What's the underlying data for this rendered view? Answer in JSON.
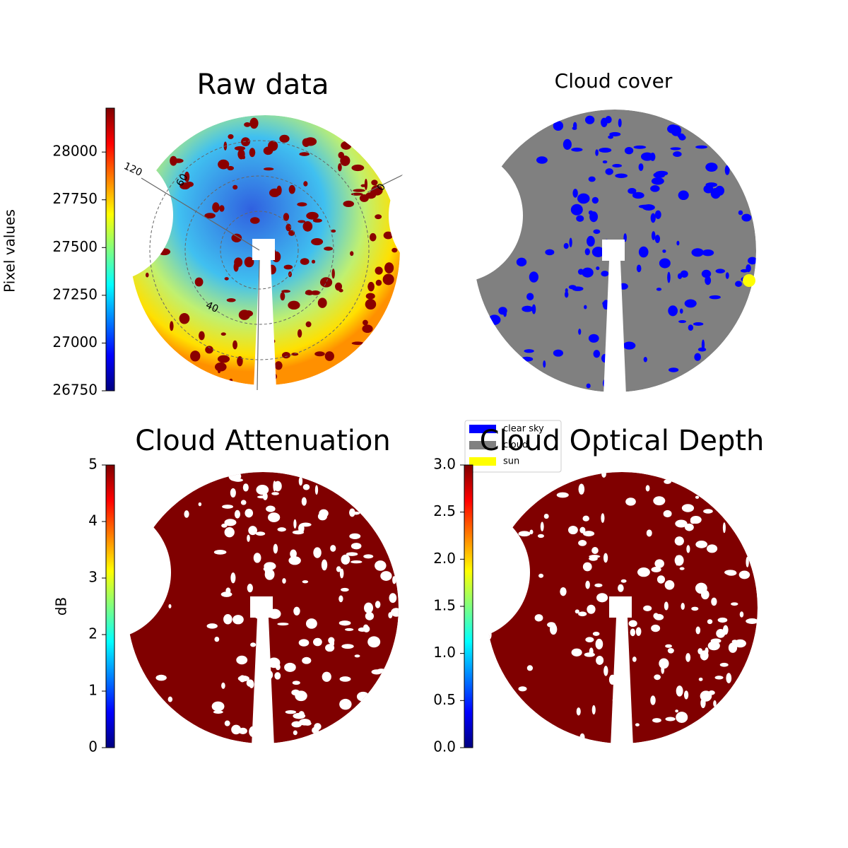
{
  "chart_data": [
    {
      "type": "image",
      "title": "Raw data",
      "ylabel": "Pixel values",
      "colormap": "jet",
      "ylim": [
        26750,
        28230
      ],
      "yticks": [
        26750,
        27000,
        27250,
        27500,
        27750,
        28000
      ],
      "annotations": [
        "120",
        "60",
        "40",
        "0"
      ]
    },
    {
      "type": "image",
      "title": "Cloud cover",
      "legend": [
        {
          "name": "clear sky",
          "color": "#0000ff"
        },
        {
          "name": "cloud",
          "color": "#808080"
        },
        {
          "name": "sun",
          "color": "#ffff00"
        }
      ]
    },
    {
      "type": "image",
      "title": "Cloud Attenuation",
      "ylabel": "dB",
      "colormap": "jet",
      "ylim": [
        0,
        5
      ],
      "yticks": [
        0,
        1,
        2,
        3,
        4,
        5
      ]
    },
    {
      "type": "image",
      "title": "Cloud Optical Depth",
      "colormap": "jet",
      "ylim": [
        0,
        3
      ],
      "yticks": [
        {
          "value": 0,
          "label": "0.0"
        },
        0.5,
        {
          "value": 1,
          "label": "1.0"
        },
        1.5,
        {
          "value": 2,
          "label": "2.0"
        },
        2.5,
        {
          "value": 3,
          "label": "3.0"
        }
      ]
    }
  ]
}
